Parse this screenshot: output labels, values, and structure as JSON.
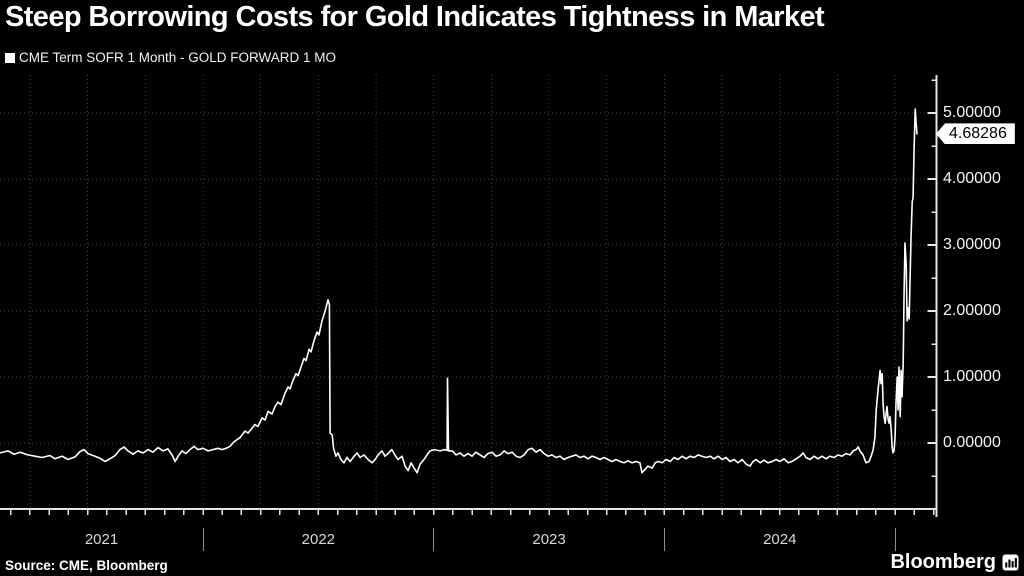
{
  "title": "Steep Borrowing Costs for Gold Indicates Tightness in Market",
  "legend": {
    "marker": "white-square",
    "label": "CME Term SOFR 1 Month - GOLD FORWARD 1 MO"
  },
  "source": "Source: CME, Bloomberg",
  "logo": {
    "text": "Bloomberg",
    "icon": "bloomberg-terminal-icon"
  },
  "colors": {
    "background": "#000000",
    "line": "#ffffff",
    "grid": "#404040",
    "axis": "#e6e6e6",
    "tick_label": "#f5f5f5",
    "year_label": "#d9d9d9",
    "separator": "#8f8f8f",
    "label_box_bg": "#ffffff",
    "label_box_text": "#000000"
  },
  "chart_data": {
    "type": "line",
    "title": "Steep Borrowing Costs for Gold Indicates Tightness in Market",
    "legend_entries": [
      "CME Term SOFR 1 Month - GOLD FORWARD 1 MO"
    ],
    "legend_position": "top-left",
    "grid": {
      "horizontal_at": [
        0,
        1,
        2,
        3,
        4,
        5
      ],
      "vertical_every_years": 0.25,
      "style": "dotted"
    },
    "x_axis": {
      "tick_labels": [
        "2021",
        "2022",
        "2023",
        "2024"
      ],
      "range_years": [
        2021.12,
        2025.18
      ],
      "year_boundaries_years": [
        2022,
        2023,
        2024,
        2025
      ],
      "minor_ticks": "monthly"
    },
    "y_axis": {
      "side": "right",
      "tick_labels": [
        "0.00000",
        "1.00000",
        "2.00000",
        "3.00000",
        "4.00000",
        "5.00000"
      ],
      "tick_values": [
        0,
        1,
        2,
        3,
        4,
        5
      ],
      "minor_tick_step": 0.5,
      "range": [
        -1.0,
        5.58
      ]
    },
    "last_value": 4.68286,
    "last_value_label": "4.68286",
    "series": [
      {
        "name": "CME Term SOFR 1 Month - GOLD FORWARD 1 MO",
        "color": "#ffffff",
        "points": [
          [
            2021.12,
            -0.15
          ],
          [
            2021.155,
            -0.12
          ],
          [
            2021.181,
            -0.17
          ],
          [
            2021.207,
            -0.14
          ],
          [
            2021.241,
            -0.18
          ],
          [
            2021.272,
            -0.2
          ],
          [
            2021.302,
            -0.22
          ],
          [
            2021.337,
            -0.19
          ],
          [
            2021.358,
            -0.24
          ],
          [
            2021.389,
            -0.2
          ],
          [
            2021.415,
            -0.25
          ],
          [
            2021.445,
            -0.21
          ],
          [
            2021.467,
            -0.13
          ],
          [
            2021.484,
            -0.1
          ],
          [
            2021.501,
            -0.16
          ],
          [
            2021.532,
            -0.2
          ],
          [
            2021.553,
            -0.23
          ],
          [
            2021.575,
            -0.28
          ],
          [
            2021.597,
            -0.24
          ],
          [
            2021.619,
            -0.19
          ],
          [
            2021.64,
            -0.1
          ],
          [
            2021.658,
            -0.06
          ],
          [
            2021.675,
            -0.12
          ],
          [
            2021.697,
            -0.17
          ],
          [
            2021.718,
            -0.12
          ],
          [
            2021.74,
            -0.15
          ],
          [
            2021.762,
            -0.1
          ],
          [
            2021.783,
            -0.14
          ],
          [
            2021.805,
            -0.07
          ],
          [
            2021.827,
            -0.12
          ],
          [
            2021.848,
            -0.09
          ],
          [
            2021.866,
            -0.18
          ],
          [
            2021.879,
            -0.28
          ],
          [
            2021.892,
            -0.2
          ],
          [
            2021.909,
            -0.12
          ],
          [
            2021.926,
            -0.16
          ],
          [
            2021.944,
            -0.1
          ],
          [
            2021.961,
            -0.05
          ],
          [
            2021.978,
            -0.1
          ],
          [
            2022.0,
            -0.08
          ],
          [
            2022.022,
            -0.12
          ],
          [
            2022.043,
            -0.1
          ],
          [
            2022.065,
            -0.08
          ],
          [
            2022.082,
            -0.1
          ],
          [
            2022.1,
            -0.08
          ],
          [
            2022.117,
            -0.05
          ],
          [
            2022.135,
            0.02
          ],
          [
            2022.16,
            0.08
          ],
          [
            2022.182,
            0.18
          ],
          [
            2022.195,
            0.15
          ],
          [
            2022.212,
            0.22
          ],
          [
            2022.225,
            0.28
          ],
          [
            2022.238,
            0.25
          ],
          [
            2022.256,
            0.38
          ],
          [
            2022.269,
            0.35
          ],
          [
            2022.282,
            0.48
          ],
          [
            2022.299,
            0.44
          ],
          [
            2022.312,
            0.55
          ],
          [
            2022.325,
            0.62
          ],
          [
            2022.338,
            0.58
          ],
          [
            2022.355,
            0.75
          ],
          [
            2022.369,
            0.85
          ],
          [
            2022.377,
            0.82
          ],
          [
            2022.39,
            0.95
          ],
          [
            2022.403,
            1.05
          ],
          [
            2022.412,
            1.02
          ],
          [
            2022.425,
            1.15
          ],
          [
            2022.438,
            1.28
          ],
          [
            2022.447,
            1.25
          ],
          [
            2022.46,
            1.42
          ],
          [
            2022.468,
            1.38
          ],
          [
            2022.481,
            1.55
          ],
          [
            2022.494,
            1.68
          ],
          [
            2022.503,
            1.64
          ],
          [
            2022.516,
            1.85
          ],
          [
            2022.525,
            1.95
          ],
          [
            2022.533,
            2.05
          ],
          [
            2022.542,
            2.17
          ],
          [
            2022.548,
            2.1
          ],
          [
            2022.551,
            0.15
          ],
          [
            2022.56,
            0.12
          ],
          [
            2022.566,
            -0.08
          ],
          [
            2022.576,
            -0.2
          ],
          [
            2022.585,
            -0.15
          ],
          [
            2022.598,
            -0.25
          ],
          [
            2022.611,
            -0.3
          ],
          [
            2022.624,
            -0.22
          ],
          [
            2022.637,
            -0.28
          ],
          [
            2022.655,
            -0.2
          ],
          [
            2022.668,
            -0.15
          ],
          [
            2022.681,
            -0.22
          ],
          [
            2022.698,
            -0.18
          ],
          [
            2022.715,
            -0.25
          ],
          [
            2022.733,
            -0.3
          ],
          [
            2022.746,
            -0.25
          ],
          [
            2022.759,
            -0.18
          ],
          [
            2022.776,
            -0.12
          ],
          [
            2022.789,
            -0.2
          ],
          [
            2022.802,
            -0.16
          ],
          [
            2022.819,
            -0.1
          ],
          [
            2022.832,
            -0.18
          ],
          [
            2022.845,
            -0.25
          ],
          [
            2022.863,
            -0.2
          ],
          [
            2022.876,
            -0.35
          ],
          [
            2022.889,
            -0.42
          ],
          [
            2022.902,
            -0.3
          ],
          [
            2022.915,
            -0.38
          ],
          [
            2022.928,
            -0.45
          ],
          [
            2022.941,
            -0.32
          ],
          [
            2022.958,
            -0.25
          ],
          [
            2022.971,
            -0.18
          ],
          [
            2022.984,
            -0.12
          ],
          [
            2023.002,
            -0.1
          ],
          [
            2023.028,
            -0.12
          ],
          [
            2023.045,
            -0.1
          ],
          [
            2023.058,
            -0.11
          ],
          [
            2023.06,
            0.98
          ],
          [
            2023.064,
            -0.12
          ],
          [
            2023.08,
            -0.12
          ],
          [
            2023.097,
            -0.18
          ],
          [
            2023.114,
            -0.15
          ],
          [
            2023.131,
            -0.2
          ],
          [
            2023.149,
            -0.16
          ],
          [
            2023.166,
            -0.2
          ],
          [
            2023.183,
            -0.14
          ],
          [
            2023.201,
            -0.18
          ],
          [
            2023.218,
            -0.22
          ],
          [
            2023.235,
            -0.16
          ],
          [
            2023.253,
            -0.14
          ],
          [
            2023.27,
            -0.2
          ],
          [
            2023.288,
            -0.18
          ],
          [
            2023.305,
            -0.12
          ],
          [
            2023.322,
            -0.16
          ],
          [
            2023.34,
            -0.14
          ],
          [
            2023.357,
            -0.2
          ],
          [
            2023.374,
            -0.22
          ],
          [
            2023.392,
            -0.18
          ],
          [
            2023.409,
            -0.1
          ],
          [
            2023.426,
            -0.08
          ],
          [
            2023.444,
            -0.14
          ],
          [
            2023.461,
            -0.1
          ],
          [
            2023.478,
            -0.16
          ],
          [
            2023.496,
            -0.2
          ],
          [
            2023.513,
            -0.18
          ],
          [
            2023.53,
            -0.22
          ],
          [
            2023.548,
            -0.2
          ],
          [
            2023.565,
            -0.25
          ],
          [
            2023.582,
            -0.22
          ],
          [
            2023.6,
            -0.2
          ],
          [
            2023.617,
            -0.18
          ],
          [
            2023.634,
            -0.22
          ],
          [
            2023.652,
            -0.2
          ],
          [
            2023.669,
            -0.24
          ],
          [
            2023.686,
            -0.2
          ],
          [
            2023.704,
            -0.22
          ],
          [
            2023.721,
            -0.25
          ],
          [
            2023.738,
            -0.22
          ],
          [
            2023.756,
            -0.25
          ],
          [
            2023.773,
            -0.28
          ],
          [
            2023.79,
            -0.25
          ],
          [
            2023.808,
            -0.28
          ],
          [
            2023.825,
            -0.3
          ],
          [
            2023.842,
            -0.27
          ],
          [
            2023.86,
            -0.3
          ],
          [
            2023.877,
            -0.28
          ],
          [
            2023.894,
            -0.3
          ],
          [
            2023.903,
            -0.45
          ],
          [
            2023.916,
            -0.4
          ],
          [
            2023.929,
            -0.35
          ],
          [
            2023.947,
            -0.38
          ],
          [
            2023.96,
            -0.3
          ],
          [
            2023.973,
            -0.28
          ],
          [
            2023.99,
            -0.3
          ],
          [
            2024.007,
            -0.25
          ],
          [
            2024.025,
            -0.28
          ],
          [
            2024.042,
            -0.22
          ],
          [
            2024.059,
            -0.25
          ],
          [
            2024.077,
            -0.2
          ],
          [
            2024.094,
            -0.24
          ],
          [
            2024.111,
            -0.2
          ],
          [
            2024.129,
            -0.22
          ],
          [
            2024.146,
            -0.18
          ],
          [
            2024.163,
            -0.2
          ],
          [
            2024.181,
            -0.22
          ],
          [
            2024.198,
            -0.2
          ],
          [
            2024.215,
            -0.24
          ],
          [
            2024.233,
            -0.2
          ],
          [
            2024.25,
            -0.25
          ],
          [
            2024.267,
            -0.22
          ],
          [
            2024.285,
            -0.28
          ],
          [
            2024.302,
            -0.25
          ],
          [
            2024.319,
            -0.3
          ],
          [
            2024.337,
            -0.25
          ],
          [
            2024.354,
            -0.32
          ],
          [
            2024.371,
            -0.35
          ],
          [
            2024.384,
            -0.28
          ],
          [
            2024.397,
            -0.25
          ],
          [
            2024.415,
            -0.3
          ],
          [
            2024.432,
            -0.26
          ],
          [
            2024.449,
            -0.3
          ],
          [
            2024.467,
            -0.28
          ],
          [
            2024.484,
            -0.25
          ],
          [
            2024.501,
            -0.28
          ],
          [
            2024.519,
            -0.24
          ],
          [
            2024.536,
            -0.3
          ],
          [
            2024.553,
            -0.28
          ],
          [
            2024.571,
            -0.24
          ],
          [
            2024.588,
            -0.2
          ],
          [
            2024.601,
            -0.15
          ],
          [
            2024.614,
            -0.22
          ],
          [
            2024.631,
            -0.25
          ],
          [
            2024.649,
            -0.2
          ],
          [
            2024.666,
            -0.24
          ],
          [
            2024.683,
            -0.2
          ],
          [
            2024.701,
            -0.24
          ],
          [
            2024.718,
            -0.2
          ],
          [
            2024.735,
            -0.22
          ],
          [
            2024.753,
            -0.18
          ],
          [
            2024.77,
            -0.2
          ],
          [
            2024.787,
            -0.16
          ],
          [
            2024.805,
            -0.18
          ],
          [
            2024.818,
            -0.12
          ],
          [
            2024.831,
            -0.1
          ],
          [
            2024.84,
            -0.06
          ],
          [
            2024.848,
            -0.12
          ],
          [
            2024.861,
            -0.18
          ],
          [
            2024.874,
            -0.3
          ],
          [
            2024.887,
            -0.28
          ],
          [
            2024.896,
            -0.2
          ],
          [
            2024.905,
            -0.1
          ],
          [
            2024.913,
            0.1
          ],
          [
            2024.918,
            0.5
          ],
          [
            2024.926,
            0.8
          ],
          [
            2024.935,
            1.1
          ],
          [
            2024.939,
            0.9
          ],
          [
            2024.944,
            1.05
          ],
          [
            2024.948,
            0.6
          ],
          [
            2024.952,
            0.4
          ],
          [
            2024.957,
            0.3
          ],
          [
            2024.961,
            0.45
          ],
          [
            2024.965,
            0.55
          ],
          [
            2024.97,
            0.35
          ],
          [
            2024.974,
            0.3
          ],
          [
            2024.978,
            0.4
          ],
          [
            2024.983,
            0.2
          ],
          [
            2024.987,
            -0.05
          ],
          [
            2024.991,
            -0.15
          ],
          [
            2024.996,
            -0.1
          ],
          [
            2025.0,
            0.1
          ],
          [
            2025.004,
            0.6
          ],
          [
            2025.009,
            1.0
          ],
          [
            2025.013,
            0.5
          ],
          [
            2025.017,
            1.15
          ],
          [
            2025.022,
            0.4
          ],
          [
            2025.026,
            1.1
          ],
          [
            2025.03,
            0.7
          ],
          [
            2025.035,
            1.2
          ],
          [
            2025.039,
            2.3
          ],
          [
            2025.043,
            3.03
          ],
          [
            2025.048,
            2.7
          ],
          [
            2025.052,
            1.85
          ],
          [
            2025.056,
            2.05
          ],
          [
            2025.061,
            1.88
          ],
          [
            2025.065,
            2.5
          ],
          [
            2025.069,
            3.1
          ],
          [
            2025.074,
            3.65
          ],
          [
            2025.078,
            3.72
          ],
          [
            2025.082,
            4.4
          ],
          [
            2025.087,
            5.06
          ],
          [
            2025.091,
            4.85
          ],
          [
            2025.095,
            4.68286
          ]
        ]
      }
    ]
  }
}
